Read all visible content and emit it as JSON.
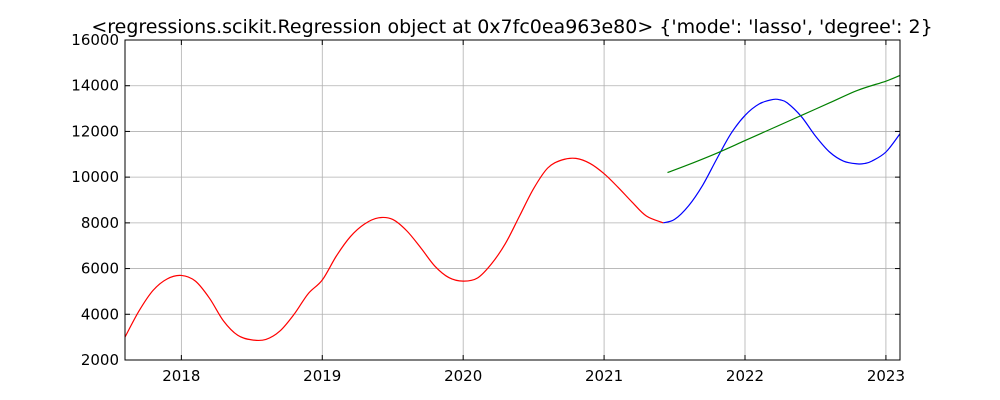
{
  "chart_data": {
    "type": "line",
    "title": "<regressions.scikit.Regression object at 0x7fc0ea963e80> {'mode': 'lasso', 'degree': 2}",
    "xlabel": "",
    "ylabel": "",
    "xlim": [
      2017.6,
      2023.1
    ],
    "ylim": [
      2000,
      16000
    ],
    "grid": true,
    "x_ticks": [
      2018,
      2019,
      2020,
      2021,
      2022,
      2023
    ],
    "x_tick_labels": [
      "2018",
      "2019",
      "2020",
      "2021",
      "2022",
      "2023"
    ],
    "y_ticks": [
      2000,
      4000,
      6000,
      8000,
      10000,
      12000,
      14000,
      16000
    ],
    "y_tick_labels": [
      "2000",
      "4000",
      "6000",
      "8000",
      "10000",
      "12000",
      "14000",
      "16000"
    ],
    "series": [
      {
        "color": "#ff0000",
        "x": [
          2017.6,
          2017.7,
          2017.8,
          2017.9,
          2018.0,
          2018.1,
          2018.2,
          2018.3,
          2018.4,
          2018.5,
          2018.6,
          2018.7,
          2018.8,
          2018.9,
          2019.0,
          2019.1,
          2019.2,
          2019.3,
          2019.4,
          2019.5,
          2019.6,
          2019.7,
          2019.8,
          2019.9,
          2020.0,
          2020.1,
          2020.2,
          2020.3,
          2020.4,
          2020.5,
          2020.6,
          2020.7,
          2020.8,
          2020.9,
          2021.0,
          2021.1,
          2021.2,
          2021.3,
          2021.42
        ],
        "y": [
          3000,
          4150,
          5050,
          5550,
          5700,
          5450,
          4700,
          3700,
          3080,
          2880,
          2900,
          3270,
          4000,
          4900,
          5500,
          6550,
          7400,
          7950,
          8220,
          8150,
          7650,
          6900,
          6100,
          5600,
          5450,
          5580,
          6200,
          7100,
          8300,
          9500,
          10400,
          10750,
          10820,
          10600,
          10150,
          9550,
          8900,
          8300,
          8000
        ]
      },
      {
        "color": "#0000ff",
        "x": [
          2021.42,
          2021.5,
          2021.6,
          2021.7,
          2021.8,
          2021.9,
          2022.0,
          2022.1,
          2022.2,
          2022.25,
          2022.3,
          2022.4,
          2022.5,
          2022.6,
          2022.7,
          2022.8,
          2022.85,
          2022.9,
          2023.0,
          2023.1
        ],
        "y": [
          8000,
          8150,
          8750,
          9650,
          10800,
          11900,
          12700,
          13200,
          13400,
          13380,
          13250,
          12650,
          11800,
          11100,
          10700,
          10580,
          10600,
          10700,
          11100,
          11900
        ]
      },
      {
        "color": "#008000",
        "x": [
          2021.45,
          2021.6,
          2021.8,
          2022.0,
          2022.2,
          2022.4,
          2022.6,
          2022.8,
          2023.0,
          2023.1
        ],
        "y": [
          10200,
          10550,
          11050,
          11600,
          12150,
          12700,
          13250,
          13800,
          14200,
          14450
        ]
      }
    ]
  }
}
